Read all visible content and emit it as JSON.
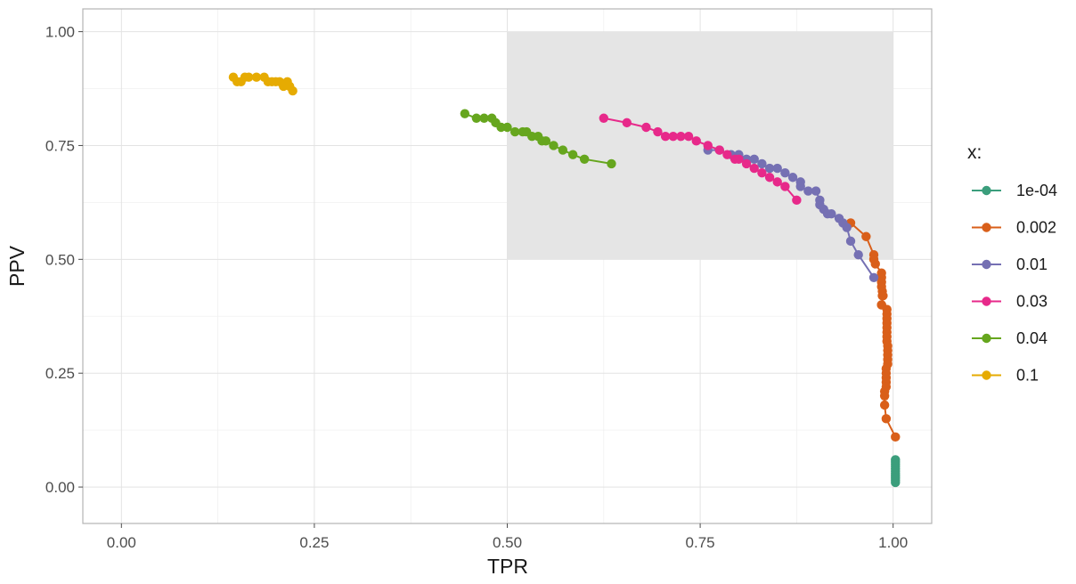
{
  "chart_data": {
    "type": "line",
    "xlabel": "TPR",
    "ylabel": "PPV",
    "xlim": [
      -0.05,
      1.05
    ],
    "ylim": [
      -0.08,
      1.05
    ],
    "x_ticks": [
      0.0,
      0.25,
      0.5,
      0.75,
      1.0
    ],
    "y_ticks": [
      0.0,
      0.25,
      0.5,
      0.75,
      1.0
    ],
    "x_tick_labels": [
      "0.00",
      "0.25",
      "0.50",
      "0.75",
      "1.00"
    ],
    "y_tick_labels": [
      "0.00",
      "0.25",
      "0.50",
      "0.75",
      "1.00"
    ],
    "grid": true,
    "legend_position": "right",
    "legend_title": "x:",
    "shaded_region": {
      "x": [
        0.5,
        1.0
      ],
      "y": [
        0.5,
        1.0
      ],
      "color": "#e5e5e5"
    },
    "series": [
      {
        "name": "1e-04",
        "color": "#3b9e7c",
        "x": [
          1.003,
          1.003,
          1.003,
          1.003,
          1.003,
          1.003,
          1.003,
          1.003,
          1.003,
          1.003,
          1.003
        ],
        "y": [
          0.06,
          0.055,
          0.05,
          0.045,
          0.04,
          0.035,
          0.03,
          0.025,
          0.02,
          0.015,
          0.01
        ]
      },
      {
        "name": "0.002",
        "color": "#d95f1a",
        "x": [
          0.945,
          0.965,
          0.975,
          0.975,
          0.977,
          0.985,
          0.985,
          0.985,
          0.985,
          0.986,
          0.986,
          0.987,
          0.985,
          0.985,
          0.992,
          0.992,
          0.992,
          0.992,
          0.992,
          0.992,
          0.992,
          0.992,
          0.993,
          0.993,
          0.993,
          0.993,
          0.993,
          0.991,
          0.991,
          0.991,
          0.991,
          0.991,
          0.989,
          0.989,
          0.989,
          0.991,
          1.003
        ],
        "y": [
          0.58,
          0.55,
          0.51,
          0.5,
          0.49,
          0.47,
          0.46,
          0.45,
          0.44,
          0.43,
          0.42,
          0.42,
          0.4,
          0.4,
          0.39,
          0.38,
          0.37,
          0.36,
          0.35,
          0.34,
          0.33,
          0.32,
          0.31,
          0.3,
          0.29,
          0.28,
          0.27,
          0.26,
          0.25,
          0.24,
          0.23,
          0.22,
          0.21,
          0.2,
          0.18,
          0.15,
          0.11
        ]
      },
      {
        "name": "0.01",
        "color": "#7570b3",
        "x": [
          0.76,
          0.775,
          0.79,
          0.8,
          0.81,
          0.82,
          0.83,
          0.84,
          0.85,
          0.86,
          0.87,
          0.88,
          0.88,
          0.89,
          0.9,
          0.905,
          0.905,
          0.91,
          0.915,
          0.92,
          0.93,
          0.935,
          0.94,
          0.945,
          0.955,
          0.975
        ],
        "y": [
          0.74,
          0.74,
          0.73,
          0.73,
          0.72,
          0.72,
          0.71,
          0.7,
          0.7,
          0.69,
          0.68,
          0.67,
          0.66,
          0.65,
          0.65,
          0.63,
          0.62,
          0.61,
          0.6,
          0.6,
          0.59,
          0.58,
          0.57,
          0.54,
          0.51,
          0.46
        ]
      },
      {
        "name": "0.03",
        "color": "#e7298a",
        "x": [
          0.625,
          0.655,
          0.68,
          0.695,
          0.705,
          0.715,
          0.725,
          0.735,
          0.745,
          0.76,
          0.775,
          0.785,
          0.795,
          0.8,
          0.81,
          0.82,
          0.83,
          0.84,
          0.85,
          0.86,
          0.875
        ],
        "y": [
          0.81,
          0.8,
          0.79,
          0.78,
          0.77,
          0.77,
          0.77,
          0.77,
          0.76,
          0.75,
          0.74,
          0.73,
          0.72,
          0.72,
          0.71,
          0.7,
          0.69,
          0.68,
          0.67,
          0.66,
          0.63
        ]
      },
      {
        "name": "0.04",
        "color": "#66a61e",
        "x": [
          0.445,
          0.46,
          0.47,
          0.48,
          0.485,
          0.492,
          0.5,
          0.51,
          0.52,
          0.525,
          0.532,
          0.54,
          0.545,
          0.55,
          0.56,
          0.572,
          0.585,
          0.6,
          0.635
        ],
        "y": [
          0.82,
          0.81,
          0.81,
          0.81,
          0.8,
          0.79,
          0.79,
          0.78,
          0.78,
          0.78,
          0.77,
          0.77,
          0.76,
          0.76,
          0.75,
          0.74,
          0.73,
          0.72,
          0.71
        ]
      },
      {
        "name": "0.1",
        "color": "#e6ab02",
        "x": [
          0.145,
          0.15,
          0.155,
          0.16,
          0.165,
          0.175,
          0.185,
          0.19,
          0.195,
          0.2,
          0.205,
          0.21,
          0.215,
          0.218,
          0.222
        ],
        "y": [
          0.9,
          0.89,
          0.89,
          0.9,
          0.9,
          0.9,
          0.9,
          0.89,
          0.89,
          0.89,
          0.89,
          0.88,
          0.89,
          0.88,
          0.87
        ]
      }
    ]
  }
}
